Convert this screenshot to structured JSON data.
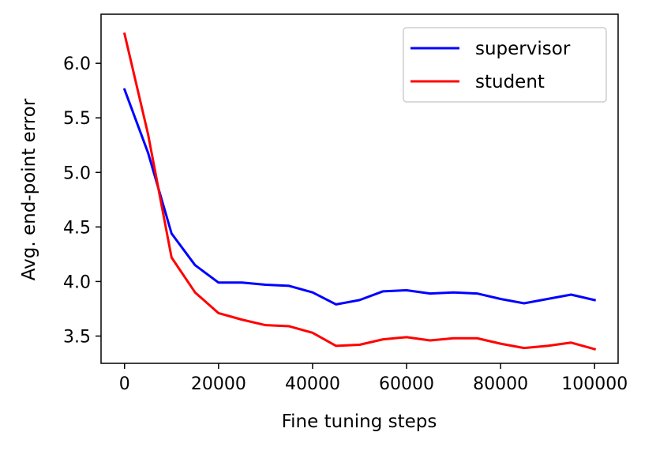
{
  "chart_data": {
    "type": "line",
    "title": "",
    "xlabel": "Fine tuning steps",
    "ylabel": "Avg. end-point error",
    "xlim": [
      -5000,
      105000
    ],
    "ylim": [
      3.25,
      6.45
    ],
    "xticks": [
      0,
      20000,
      40000,
      60000,
      80000,
      100000
    ],
    "xtick_labels": [
      "0",
      "20000",
      "40000",
      "60000",
      "80000",
      "100000"
    ],
    "yticks": [
      3.5,
      4.0,
      4.5,
      5.0,
      5.5,
      6.0
    ],
    "ytick_labels": [
      "3.5",
      "4.0",
      "4.5",
      "5.0",
      "5.5",
      "6.0"
    ],
    "grid": false,
    "legend_position": "top-right",
    "x": [
      0,
      5000,
      10000,
      15000,
      20000,
      25000,
      30000,
      35000,
      40000,
      45000,
      50000,
      55000,
      60000,
      65000,
      70000,
      75000,
      80000,
      85000,
      90000,
      95000,
      100000
    ],
    "series": [
      {
        "name": "supervisor",
        "color": "#0000ff",
        "values": [
          5.76,
          5.18,
          4.44,
          4.15,
          3.99,
          3.99,
          3.97,
          3.96,
          3.9,
          3.79,
          3.83,
          3.91,
          3.92,
          3.89,
          3.9,
          3.89,
          3.84,
          3.8,
          3.84,
          3.88,
          3.83
        ]
      },
      {
        "name": "student",
        "color": "#ff0000",
        "values": [
          6.27,
          5.35,
          4.22,
          3.9,
          3.71,
          3.65,
          3.6,
          3.59,
          3.53,
          3.41,
          3.42,
          3.47,
          3.49,
          3.46,
          3.48,
          3.48,
          3.43,
          3.39,
          3.41,
          3.44,
          3.38
        ]
      }
    ]
  }
}
